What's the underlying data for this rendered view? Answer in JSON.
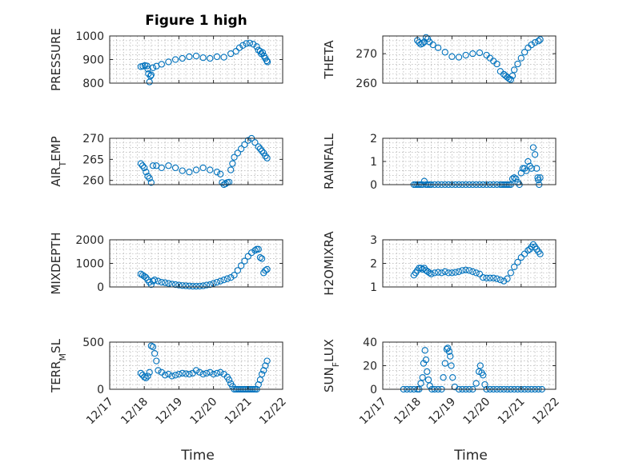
{
  "figure_title": "Figure 1 high",
  "colors": {
    "marker": "#0072BD",
    "axis": "#262626",
    "grid": "#b0b0b0"
  },
  "chart_data": [
    {
      "type": "scatter",
      "title": "Figure 1 high",
      "ylabel": "PRESSURE",
      "xlabel": "",
      "xlim": [
        0,
        5
      ],
      "ylim": [
        800,
        1000
      ],
      "yticks": [
        800,
        900,
        1000
      ],
      "xticks": [
        0,
        1,
        2,
        3,
        4,
        5
      ],
      "xticklabels": [],
      "grid": "minor",
      "x": [
        0.9,
        0.96,
        1.02,
        1.08,
        1.1,
        1.12,
        1.15,
        1.18,
        1.2,
        1.25,
        1.35,
        1.5,
        1.7,
        1.9,
        2.1,
        2.3,
        2.5,
        2.7,
        2.9,
        3.1,
        3.3,
        3.5,
        3.65,
        3.75,
        3.85,
        3.95,
        4.05,
        4.15,
        4.25,
        4.3,
        4.35,
        4.38,
        4.42,
        4.46,
        4.5,
        4.54,
        4.56
      ],
      "y": [
        870,
        872,
        875,
        873,
        860,
        840,
        805,
        830,
        835,
        865,
        872,
        880,
        890,
        900,
        905,
        912,
        915,
        908,
        905,
        912,
        910,
        925,
        935,
        950,
        960,
        968,
        970,
        965,
        955,
        940,
        935,
        925,
        930,
        915,
        905,
        895,
        890
      ]
    },
    {
      "type": "scatter",
      "ylabel": "THETA",
      "xlabel": "",
      "xlim": [
        0,
        5
      ],
      "ylim": [
        260,
        276
      ],
      "yticks": [
        260,
        270
      ],
      "xticks": [
        0,
        1,
        2,
        3,
        4,
        5
      ],
      "xticklabels": [],
      "grid": "minor",
      "x": [
        1.0,
        1.05,
        1.1,
        1.15,
        1.2,
        1.25,
        1.3,
        1.35,
        1.45,
        1.6,
        1.8,
        2.0,
        2.2,
        2.4,
        2.6,
        2.8,
        3.0,
        3.1,
        3.2,
        3.3,
        3.4,
        3.5,
        3.55,
        3.6,
        3.65,
        3.7,
        3.75,
        3.8,
        3.9,
        4.0,
        4.1,
        4.2,
        4.3,
        4.4,
        4.5,
        4.55
      ],
      "y": [
        274.5,
        273.8,
        273.2,
        273.5,
        274,
        275.5,
        275,
        274,
        273,
        272,
        270.5,
        269,
        268.8,
        269.5,
        270,
        270.3,
        269.5,
        268.5,
        267.5,
        266.5,
        264,
        263,
        262.5,
        262,
        261.5,
        261.2,
        262.5,
        264.5,
        266.5,
        268.5,
        270.5,
        272,
        273,
        273.8,
        274.3,
        274.8
      ]
    },
    {
      "type": "scatter",
      "ylabel": "AIR_TEMP",
      "xlabel": "",
      "xlim": [
        0,
        5
      ],
      "ylim": [
        259,
        270
      ],
      "yticks": [
        260,
        265,
        270
      ],
      "xticks": [
        0,
        1,
        2,
        3,
        4,
        5
      ],
      "xticklabels": [],
      "grid": "minor",
      "x": [
        0.9,
        0.95,
        1.0,
        1.05,
        1.1,
        1.15,
        1.2,
        1.25,
        1.35,
        1.5,
        1.7,
        1.9,
        2.1,
        2.3,
        2.5,
        2.7,
        2.9,
        3.1,
        3.2,
        3.25,
        3.3,
        3.35,
        3.4,
        3.45,
        3.5,
        3.55,
        3.6,
        3.7,
        3.8,
        3.9,
        4.0,
        4.1,
        4.2,
        4.3,
        4.35,
        4.4,
        4.45,
        4.5,
        4.55
      ],
      "y": [
        264,
        263.5,
        263,
        262,
        261,
        260.5,
        259.5,
        263.5,
        263.5,
        263,
        263.5,
        263,
        262.3,
        262,
        262.5,
        263,
        262.5,
        262,
        261.5,
        259.5,
        259,
        259.2,
        259.5,
        259.6,
        262.5,
        264,
        265.5,
        266.5,
        267.5,
        268.5,
        269.5,
        270,
        269,
        268,
        267.5,
        267,
        266.5,
        265.8,
        265.3
      ]
    },
    {
      "type": "scatter",
      "ylabel": "RAINFALL",
      "xlabel": "",
      "xlim": [
        0,
        5
      ],
      "ylim": [
        0,
        2
      ],
      "yticks": [
        0,
        1,
        2
      ],
      "xticks": [
        0,
        1,
        2,
        3,
        4,
        5
      ],
      "xticklabels": [],
      "grid": "minor",
      "x": [
        0.9,
        0.95,
        1.0,
        1.05,
        1.1,
        1.15,
        1.2,
        1.25,
        1.3,
        1.35,
        1.4,
        1.5,
        1.6,
        1.7,
        1.8,
        1.9,
        2.0,
        2.1,
        2.2,
        2.3,
        2.4,
        2.5,
        2.6,
        2.7,
        2.8,
        2.9,
        3.0,
        3.1,
        3.2,
        3.3,
        3.4,
        3.45,
        3.5,
        3.55,
        3.6,
        3.65,
        3.7,
        3.75,
        3.8,
        3.85,
        3.9,
        3.95,
        4.0,
        4.05,
        4.1,
        4.15,
        4.2,
        4.25,
        4.3,
        4.35,
        4.4,
        4.45,
        4.48,
        4.5,
        4.52,
        4.55
      ],
      "y": [
        0,
        0,
        0,
        0,
        0,
        0,
        0.15,
        0,
        0,
        0,
        0,
        0,
        0,
        0,
        0,
        0,
        0,
        0,
        0,
        0,
        0,
        0,
        0,
        0,
        0,
        0,
        0,
        0,
        0,
        0,
        0,
        0,
        0,
        0,
        0,
        0,
        0,
        0.25,
        0.3,
        0.25,
        0.1,
        0,
        0.5,
        0.7,
        0.7,
        0.6,
        1.0,
        0.8,
        0.7,
        1.6,
        1.3,
        0.7,
        0.3,
        0.2,
        0,
        0.3
      ]
    },
    {
      "type": "scatter",
      "ylabel": "MIXDEPTH",
      "xlabel": "",
      "xlim": [
        0,
        5
      ],
      "ylim": [
        0,
        2000
      ],
      "yticks": [
        0,
        1000,
        2000
      ],
      "xticks": [
        0,
        1,
        2,
        3,
        4,
        5
      ],
      "xticklabels": [],
      "grid": "minor",
      "x": [
        0.9,
        0.95,
        1.0,
        1.05,
        1.1,
        1.15,
        1.2,
        1.25,
        1.3,
        1.4,
        1.5,
        1.6,
        1.7,
        1.8,
        1.9,
        2.0,
        2.1,
        2.2,
        2.3,
        2.4,
        2.5,
        2.6,
        2.7,
        2.8,
        2.9,
        3.0,
        3.1,
        3.2,
        3.3,
        3.4,
        3.5,
        3.6,
        3.7,
        3.8,
        3.9,
        4.0,
        4.1,
        4.2,
        4.25,
        4.3,
        4.35,
        4.4,
        4.45,
        4.5,
        4.55
      ],
      "y": [
        550,
        500,
        450,
        400,
        300,
        200,
        100,
        250,
        300,
        250,
        200,
        180,
        150,
        120,
        100,
        80,
        60,
        50,
        40,
        30,
        30,
        35,
        50,
        80,
        100,
        150,
        200,
        250,
        300,
        350,
        400,
        500,
        700,
        900,
        1100,
        1300,
        1450,
        1550,
        1600,
        1600,
        1250,
        1200,
        600,
        700,
        750
      ]
    },
    {
      "type": "scatter",
      "ylabel": "H2OMIXRA",
      "xlabel": "",
      "xlim": [
        0,
        5
      ],
      "ylim": [
        1,
        3
      ],
      "yticks": [
        1,
        2,
        3
      ],
      "xticks": [
        0,
        1,
        2,
        3,
        4,
        5
      ],
      "xticklabels": [],
      "grid": "minor",
      "x": [
        0.9,
        0.95,
        1.0,
        1.05,
        1.1,
        1.15,
        1.2,
        1.25,
        1.3,
        1.35,
        1.4,
        1.5,
        1.6,
        1.7,
        1.8,
        1.9,
        2.0,
        2.1,
        2.2,
        2.3,
        2.4,
        2.5,
        2.6,
        2.7,
        2.8,
        2.9,
        3.0,
        3.1,
        3.2,
        3.3,
        3.4,
        3.5,
        3.6,
        3.7,
        3.8,
        3.9,
        4.0,
        4.1,
        4.2,
        4.25,
        4.3,
        4.35,
        4.4,
        4.45,
        4.5,
        4.55
      ],
      "y": [
        1.5,
        1.6,
        1.7,
        1.8,
        1.8,
        1.75,
        1.8,
        1.7,
        1.65,
        1.6,
        1.55,
        1.6,
        1.62,
        1.6,
        1.65,
        1.6,
        1.6,
        1.62,
        1.65,
        1.7,
        1.72,
        1.7,
        1.65,
        1.6,
        1.55,
        1.4,
        1.38,
        1.38,
        1.38,
        1.35,
        1.3,
        1.25,
        1.35,
        1.6,
        1.85,
        2.05,
        2.25,
        2.4,
        2.55,
        2.6,
        2.7,
        2.8,
        2.7,
        2.6,
        2.5,
        2.4
      ]
    },
    {
      "type": "scatter",
      "ylabel": "TERR_MSL",
      "xlabel": "Time",
      "xlim": [
        0,
        5
      ],
      "ylim": [
        0,
        500
      ],
      "yticks": [
        0,
        500
      ],
      "xticks": [
        0,
        1,
        2,
        3,
        4,
        5
      ],
      "xticklabels": [
        "12/17",
        "12/18",
        "12/19",
        "12/20",
        "12/21",
        "12/22"
      ],
      "grid": "minor",
      "x": [
        0.9,
        0.95,
        1.0,
        1.05,
        1.1,
        1.15,
        1.2,
        1.25,
        1.3,
        1.35,
        1.4,
        1.5,
        1.6,
        1.7,
        1.8,
        1.9,
        2.0,
        2.1,
        2.2,
        2.3,
        2.4,
        2.5,
        2.6,
        2.7,
        2.8,
        2.9,
        3.0,
        3.1,
        3.2,
        3.3,
        3.4,
        3.45,
        3.5,
        3.55,
        3.6,
        3.65,
        3.7,
        3.75,
        3.8,
        3.85,
        3.9,
        3.95,
        4.0,
        4.05,
        4.1,
        4.15,
        4.2,
        4.25,
        4.3,
        4.35,
        4.4,
        4.45,
        4.5,
        4.55
      ],
      "y": [
        170,
        150,
        130,
        120,
        140,
        180,
        460,
        450,
        380,
        300,
        200,
        180,
        150,
        160,
        140,
        150,
        160,
        170,
        165,
        160,
        170,
        200,
        180,
        160,
        170,
        180,
        160,
        170,
        180,
        160,
        130,
        100,
        60,
        30,
        0,
        0,
        0,
        0,
        0,
        0,
        0,
        0,
        0,
        0,
        0,
        0,
        0,
        0,
        50,
        100,
        160,
        200,
        250,
        300
      ]
    },
    {
      "type": "scatter",
      "ylabel": "SUN_FLUX",
      "xlabel": "Time",
      "xlim": [
        0,
        5
      ],
      "ylim": [
        0,
        40
      ],
      "yticks": [
        0,
        20,
        40
      ],
      "xticks": [
        0,
        1,
        2,
        3,
        4,
        5
      ],
      "xticklabels": [
        "12/17",
        "12/18",
        "12/19",
        "12/20",
        "12/21",
        "12/22"
      ],
      "grid": "minor",
      "x": [
        0.6,
        0.7,
        0.8,
        0.9,
        1.0,
        1.05,
        1.1,
        1.15,
        1.18,
        1.22,
        1.25,
        1.28,
        1.32,
        1.36,
        1.42,
        1.5,
        1.6,
        1.7,
        1.75,
        1.8,
        1.85,
        1.88,
        1.92,
        1.95,
        1.98,
        2.02,
        2.08,
        2.2,
        2.3,
        2.4,
        2.5,
        2.6,
        2.7,
        2.78,
        2.82,
        2.86,
        2.9,
        2.95,
        3.0,
        3.1,
        3.2,
        3.3,
        3.4,
        3.5,
        3.6,
        3.7,
        3.8,
        3.9,
        4.0,
        4.1,
        4.2,
        4.3,
        4.4,
        4.5,
        4.6
      ],
      "y": [
        0,
        0,
        0,
        0,
        0,
        0,
        5,
        10,
        22,
        33,
        25,
        15,
        8,
        3,
        0,
        0,
        0,
        0,
        10,
        22,
        34,
        35,
        32,
        28,
        20,
        10,
        2,
        0,
        0,
        0,
        0,
        0,
        5,
        15,
        20,
        14,
        12,
        4,
        0,
        0,
        0,
        0,
        0,
        0,
        0,
        0,
        0,
        0,
        0,
        0,
        0,
        0,
        0,
        0,
        0
      ]
    }
  ]
}
